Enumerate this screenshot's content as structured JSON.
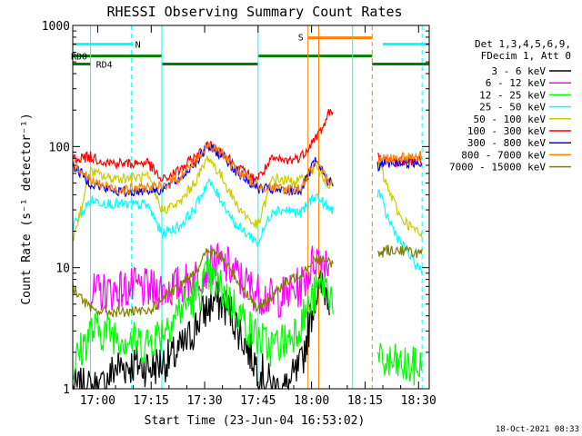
{
  "chart_data": {
    "type": "line",
    "title": "RHESSI Observing Summary Count Rates",
    "xlabel": "Start Time (23-Jun-04 16:53:02)",
    "ylabel": "Count Rate (s⁻¹ detector⁻¹)",
    "yscale": "log",
    "ylim": [
      1,
      1000
    ],
    "xlim_minutes": [
      0,
      100
    ],
    "x_tick_labels": [
      "17:00",
      "17:15",
      "17:30",
      "17:45",
      "18:00",
      "18:15",
      "18:30"
    ],
    "x_tick_minutes": [
      7,
      22,
      37,
      52,
      67,
      82,
      97
    ],
    "y_tick_labels": [
      "1",
      "10",
      "100",
      "1000"
    ],
    "y_tick_values": [
      1,
      10,
      100,
      1000
    ],
    "legend_header": [
      "Det 1,3,4,5,6,9,",
      "FDecim 1, Att 0"
    ],
    "legend_position": "right",
    "timestamp": "18-Oct-2021 08:33",
    "series": [
      {
        "name": "3 - 6 keV",
        "color": "#000000",
        "x": [
          0,
          8,
          12,
          18,
          22,
          28,
          32,
          36,
          40,
          44,
          48,
          52,
          56,
          60,
          64,
          66,
          68,
          70,
          72
        ],
        "values": [
          1,
          1,
          1.5,
          1.6,
          1.5,
          1.8,
          2.4,
          4,
          5.5,
          4.5,
          2.5,
          1.5,
          1,
          1,
          1.5,
          3,
          6,
          7,
          6
        ]
      },
      {
        "name": "6 - 12 keV",
        "color": "#ff00ff",
        "x": [
          5,
          8,
          12,
          18,
          22,
          28,
          32,
          36,
          40,
          44,
          48,
          52,
          56,
          60,
          64,
          66,
          68,
          70,
          72
        ],
        "values": [
          6,
          6.2,
          6.5,
          6.8,
          6.5,
          6.8,
          7.5,
          9,
          11,
          10,
          7.5,
          6.2,
          5.5,
          6,
          7,
          9,
          12,
          12,
          11
        ]
      },
      {
        "name": "12 - 25 keV",
        "color": "#00ff00",
        "x": [
          0,
          5,
          10,
          15,
          20,
          25,
          30,
          35,
          38,
          42,
          46,
          50,
          55,
          60,
          64,
          68,
          70,
          72,
          82,
          86,
          90,
          94,
          98
        ],
        "values": [
          1.5,
          3,
          3,
          2.6,
          2.3,
          3,
          4.5,
          6,
          8.5,
          6.5,
          4.5,
          3,
          2.2,
          2.5,
          3.5,
          6,
          7.5,
          6.5,
          1.5,
          1.6,
          1.6,
          1.5,
          1.5
        ]
      },
      {
        "name": "25 - 50 keV",
        "color": "#00ffff",
        "x": [
          0,
          5,
          10,
          15,
          21,
          25,
          30,
          34,
          38,
          42,
          46,
          50,
          52,
          56,
          60,
          64,
          68,
          72,
          86,
          88,
          92,
          98
        ],
        "values": [
          22,
          36,
          34,
          33,
          33,
          19,
          22,
          30,
          52,
          35,
          22,
          18,
          16,
          30,
          30,
          28,
          40,
          30,
          42,
          27,
          16,
          9
        ]
      },
      {
        "name": "50 - 100 keV",
        "color": "#ffff00",
        "draw_color": "#cccc00",
        "x": [
          0,
          5,
          10,
          15,
          21,
          25,
          30,
          35,
          38,
          42,
          46,
          50,
          52,
          56,
          60,
          64,
          68,
          72,
          86,
          88,
          92,
          98
        ],
        "values": [
          17,
          62,
          55,
          55,
          56,
          30,
          34,
          55,
          82,
          55,
          33,
          24,
          22,
          55,
          52,
          52,
          68,
          48,
          72,
          48,
          26,
          18
        ]
      },
      {
        "name": "100 - 300 keV",
        "color": "#ff0000",
        "x": [
          0,
          5,
          10,
          15,
          21,
          25,
          30,
          35,
          38,
          42,
          46,
          50,
          52,
          56,
          60,
          64,
          68,
          70,
          72,
          86,
          88,
          92,
          98
        ],
        "values": [
          80,
          82,
          74,
          72,
          74,
          52,
          64,
          85,
          103,
          90,
          68,
          56,
          55,
          78,
          76,
          82,
          118,
          140,
          195,
          80,
          75,
          76,
          78
        ]
      },
      {
        "name": "300 - 800 keV",
        "color": "#0000ff",
        "x": [
          0,
          5,
          10,
          15,
          21,
          25,
          30,
          35,
          38,
          42,
          46,
          50,
          52,
          56,
          60,
          64,
          68,
          72,
          86,
          88,
          92,
          98
        ],
        "values": [
          70,
          50,
          44,
          42,
          44,
          44,
          54,
          78,
          100,
          85,
          62,
          50,
          45,
          44,
          42,
          44,
          75,
          50,
          70,
          72,
          74,
          74
        ]
      },
      {
        "name": "800 - 7000 keV",
        "color": "#ff8000",
        "x": [
          0,
          5,
          10,
          15,
          21,
          25,
          30,
          35,
          38,
          42,
          46,
          50,
          52,
          56,
          60,
          64,
          68,
          72,
          86,
          88,
          92,
          98
        ],
        "values": [
          75,
          52,
          46,
          44,
          46,
          46,
          56,
          80,
          102,
          88,
          64,
          52,
          47,
          46,
          44,
          46,
          72,
          52,
          78,
          80,
          82,
          84
        ]
      },
      {
        "name": "7000 - 15000 keV",
        "color": "#808000",
        "x": [
          0,
          5,
          10,
          15,
          21,
          25,
          30,
          35,
          38,
          42,
          46,
          50,
          52,
          56,
          60,
          64,
          68,
          72,
          86,
          88,
          92,
          98
        ],
        "values": [
          7,
          4.5,
          4.3,
          4.3,
          4.3,
          5.5,
          7,
          10,
          14,
          12,
          8,
          5.5,
          4.5,
          6,
          7.5,
          9,
          12,
          11,
          13,
          14,
          14,
          13
        ]
      }
    ],
    "state_bars": [
      {
        "label": "N",
        "color": "#00ffff",
        "y": 700,
        "x0": 0,
        "x1": 17
      },
      {
        "label": "",
        "color": "#00ffff",
        "y": 700,
        "x0": 87,
        "x1": 100
      },
      {
        "label": "S",
        "color": "#ff8000",
        "y": 790,
        "x0": 66,
        "x1": 84
      },
      {
        "label": "RD0",
        "color": "#008000",
        "y": 560,
        "x0": 0,
        "x1": 25
      },
      {
        "label": "RD4",
        "color": "#008000",
        "y": 480,
        "x0": 0,
        "x1": 5
      },
      {
        "label": "",
        "color": "#008000",
        "y": 480,
        "x0": 25,
        "x1": 52
      },
      {
        "label": "",
        "color": "#008000",
        "y": 560,
        "x0": 52,
        "x1": 84
      },
      {
        "label": "",
        "color": "#008000",
        "y": 480,
        "x0": 84,
        "x1": 100
      }
    ],
    "vertical_lines": [
      {
        "x": 16.5,
        "color": "#00ffff",
        "dashed": true
      },
      {
        "x": 98,
        "color": "#00ffff",
        "dashed": true
      },
      {
        "x": 66,
        "color": "#ff8000",
        "dashed": false
      },
      {
        "x": 69,
        "color": "#ff8000",
        "dashed": false
      },
      {
        "x": 84,
        "color": "#ff8000",
        "dashed": true
      },
      {
        "x": 78.5,
        "color": "#00ffff",
        "dashed": false
      },
      {
        "x": 5,
        "color": "#00ffff",
        "dashed": false
      },
      {
        "x": 25,
        "color": "#00ffff",
        "dashed": false
      },
      {
        "x": 52,
        "color": "#00ffff",
        "dashed": false
      }
    ],
    "data_gap": [
      73,
      85.5
    ]
  }
}
